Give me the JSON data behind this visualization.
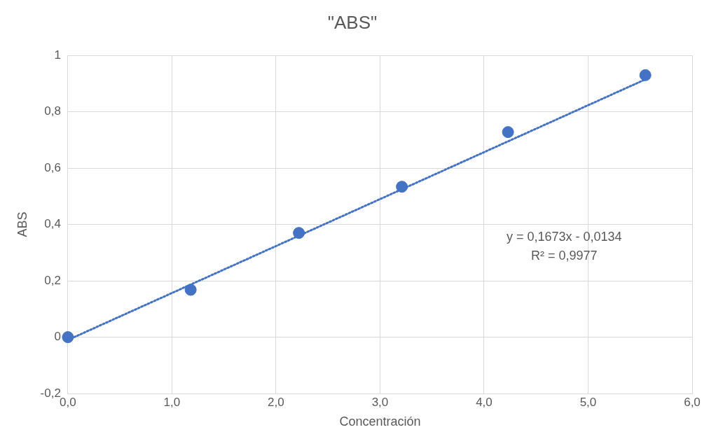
{
  "chart_data": {
    "type": "scatter",
    "title": "\"ABS\"",
    "xlabel": "Concentración",
    "ylabel": "ABS",
    "x": [
      0,
      1.18,
      2.22,
      3.21,
      4.23,
      5.55
    ],
    "series": [
      {
        "type": "scatter",
        "color": "#4472c4",
        "values": [
          0,
          0.168,
          0.37,
          0.534,
          0.728,
          0.93
        ],
        "marker": "circle"
      },
      {
        "type": "line",
        "color": "#4472c4",
        "x": [
          0,
          5.55
        ],
        "values": [
          -0.01,
          0.915
        ],
        "line_style": "dotted",
        "marker": "none"
      }
    ],
    "xlim": [
      0,
      6
    ],
    "xticks": [
      {
        "value": 0,
        "label": "0,0"
      },
      {
        "value": 1,
        "label": "1,0"
      },
      {
        "value": 2,
        "label": "2,0"
      },
      {
        "value": 3,
        "label": "3,0"
      },
      {
        "value": 4,
        "label": "4,0"
      },
      {
        "value": 5,
        "label": "5,0"
      },
      {
        "value": 6,
        "label": "6,0"
      }
    ],
    "ylim": [
      -0.2,
      1
    ],
    "yticks": [
      {
        "value": -0.2,
        "label": "-0,2"
      },
      {
        "value": 0,
        "label": "0"
      },
      {
        "value": 0.2,
        "label": "0,2"
      },
      {
        "value": 0.4,
        "label": "0,4"
      },
      {
        "value": 0.6,
        "label": "0,6"
      },
      {
        "value": 0.8,
        "label": "0,8"
      },
      {
        "value": 1,
        "label": "1"
      }
    ],
    "grid": true,
    "legend": false,
    "annotations": [
      "y = 0,1673x - 0,0134",
      "R² = 0,9977"
    ]
  }
}
